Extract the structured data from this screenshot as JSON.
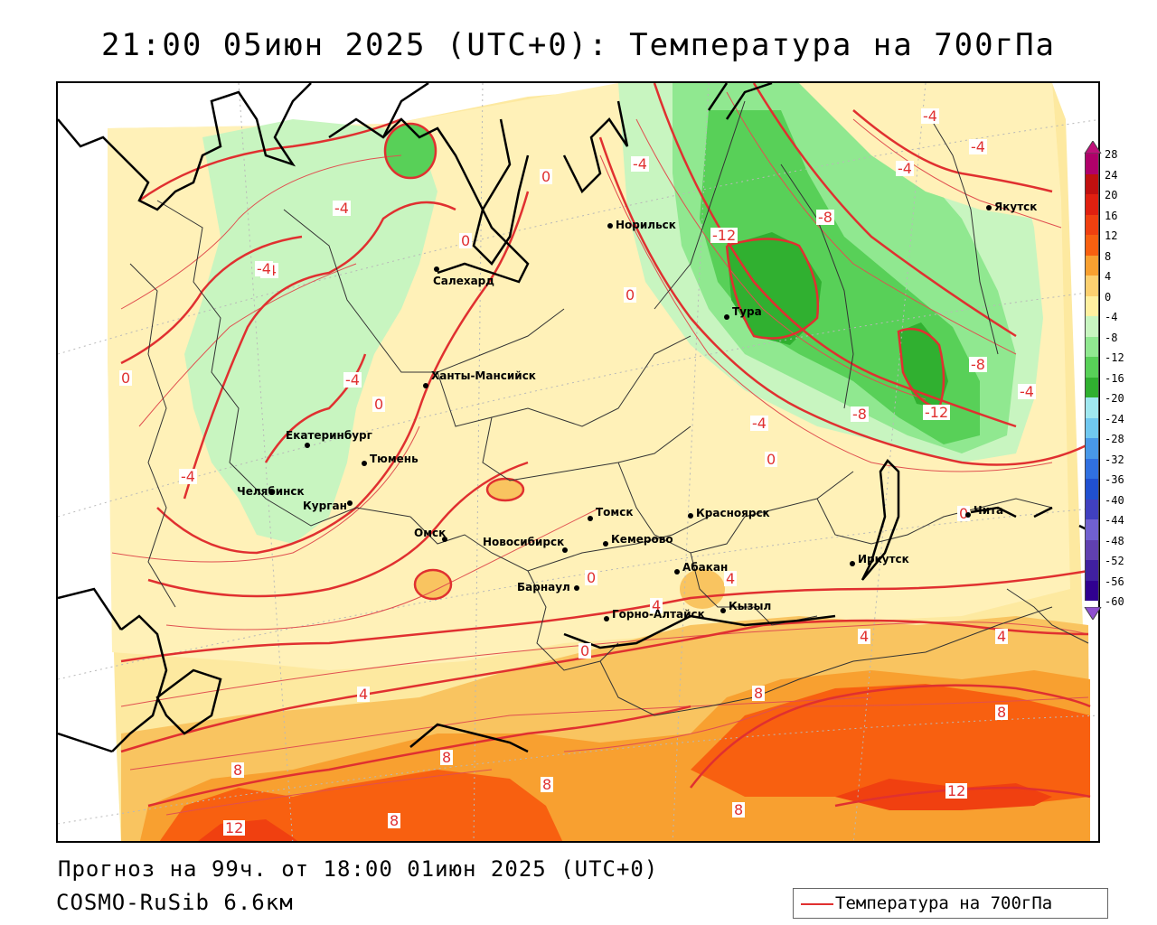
{
  "title": "21:00 05июн 2025 (UTC+0): Температура на 700гПа",
  "footer": {
    "forecast": "Прогноз на 99ч. от 18:00 01июн 2025 (UTC+0)",
    "model": "COSMO-RuSib 6.6км"
  },
  "legend": {
    "label": "Температура на 700гПа",
    "line_color": "#e03030"
  },
  "colorbar": {
    "ticks": [
      "28",
      "24",
      "20",
      "16",
      "12",
      "8",
      "4",
      "0",
      "-4",
      "-8",
      "-12",
      "-16",
      "-20",
      "-24",
      "-28",
      "-32",
      "-36",
      "-40",
      "-44",
      "-48",
      "-52",
      "-56",
      "-60"
    ],
    "colors": [
      "#b0006a",
      "#c01010",
      "#e02010",
      "#f04010",
      "#f86010",
      "#f8a030",
      "#fcd070",
      "#fff0a0",
      "#c8f5c0",
      "#90e890",
      "#58d058",
      "#30b030",
      "#a0e8f0",
      "#70c8f0",
      "#4898e8",
      "#3070e0",
      "#2050d0",
      "#4040c0",
      "#7060d0",
      "#6040b0",
      "#4020a0",
      "#300090"
    ]
  },
  "cities": [
    {
      "name": "Норильск"
    },
    {
      "name": "Якутск"
    },
    {
      "name": "Салехард"
    },
    {
      "name": "Тура"
    },
    {
      "name": "Ханты-Мансийск"
    },
    {
      "name": "Екатеринбург"
    },
    {
      "name": "Тюмень"
    },
    {
      "name": "Челябинск"
    },
    {
      "name": "Курган"
    },
    {
      "name": "Томск"
    },
    {
      "name": "Красноярск"
    },
    {
      "name": "Чита"
    },
    {
      "name": "Омск"
    },
    {
      "name": "Новосибирск"
    },
    {
      "name": "Кемерово"
    },
    {
      "name": "Иркутск"
    },
    {
      "name": "Барнаул"
    },
    {
      "name": "Абакан"
    },
    {
      "name": "Кызыл"
    },
    {
      "name": "Горно-Алтайск"
    }
  ],
  "contour_labels": [
    "-4",
    "-4",
    "-4",
    "-4",
    "-4",
    "0",
    "0",
    "-4",
    "-8",
    "-12",
    "0",
    "-4",
    "0",
    "0",
    "-4",
    "0",
    "-8",
    "-4",
    "-12",
    "-8",
    "0",
    "-4",
    "-4",
    "0",
    "4",
    "4",
    "4",
    "4",
    "8",
    "8",
    "4",
    "8",
    "8",
    "8",
    "12",
    "12",
    "8",
    "8",
    "12",
    "0"
  ]
}
